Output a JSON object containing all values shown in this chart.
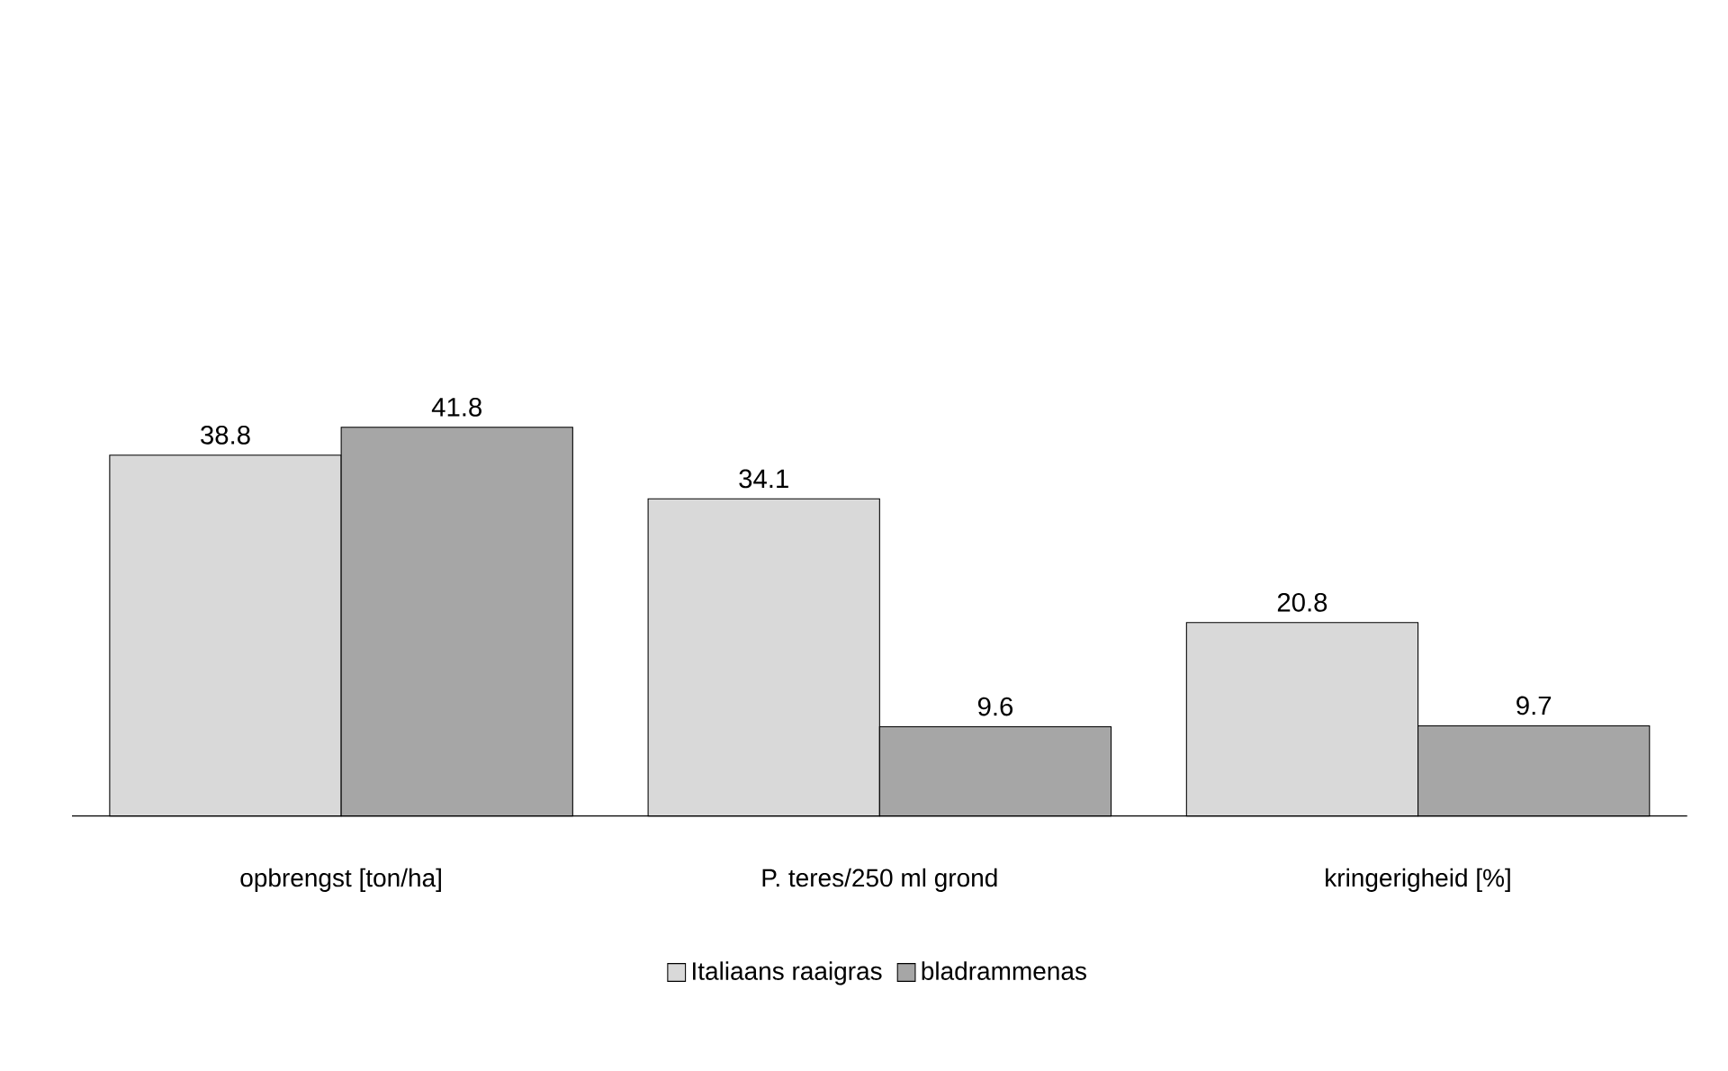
{
  "chart_data": {
    "type": "bar",
    "categories": [
      "opbrengst [ton/ha]",
      "P. teres/250 ml grond",
      "kringerigheid [%]"
    ],
    "series": [
      {
        "name": "Italiaans raaigras",
        "color": "#d9d9d9",
        "values": [
          38.8,
          34.1,
          20.8
        ]
      },
      {
        "name": "bladrammenas",
        "color": "#a6a6a6",
        "values": [
          41.8,
          9.6,
          9.7
        ]
      }
    ],
    "data_labels": true,
    "legend": "bottom",
    "tick_labels": "x"
  }
}
